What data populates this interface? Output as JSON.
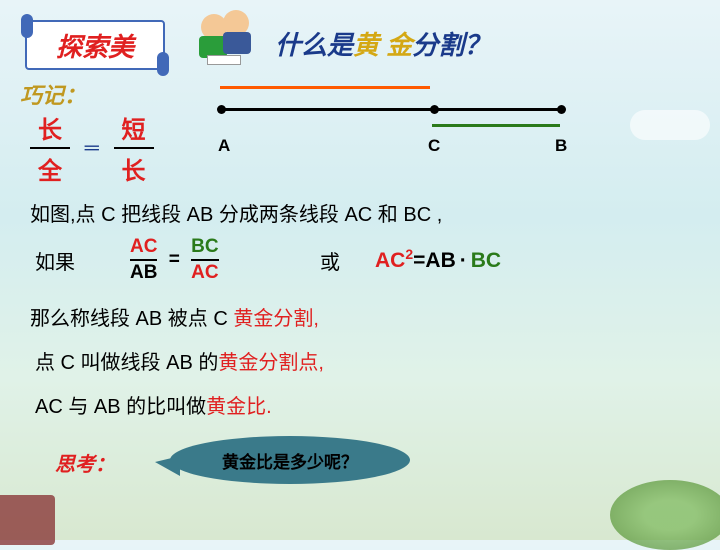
{
  "banner": {
    "text": "探索美"
  },
  "title": {
    "prefix": "什么是",
    "gold": "黄 金",
    "suffix": "分割？"
  },
  "qiaoji": "巧记：",
  "mnemonic": {
    "f1_top": "长",
    "f1_bot": "全",
    "eq": "═",
    "f2_top": "短",
    "f2_bot": "长"
  },
  "diagram": {
    "labelA": "A",
    "labelB": "B",
    "labelC": "C",
    "colors": {
      "orange": "#ff5a00",
      "black": "#000000",
      "green": "#2a7a1a"
    }
  },
  "line1": "如图,点 C 把线段 AB 分成两条线段 AC 和 BC ,",
  "line2_prefix": "如果",
  "equation1": {
    "n1": "AC",
    "d1": "AB",
    "eq": "=",
    "n2": "BC",
    "d2": "AC"
  },
  "huo": "或",
  "equation2": {
    "lhs": "AC",
    "sup": "2",
    "eq": "=",
    "m1": "AB",
    "op": "·",
    "m2": "BC"
  },
  "line3_prefix": "那么称线段 AB 被点 C ",
  "line3_gold": "黄金分割,",
  "line4_prefix": "点 C 叫做线段 AB 的",
  "line4_gold": "黄金分割点,",
  "line5_prefix": "AC 与 AB 的比叫做",
  "line5_gold": "黄金比.",
  "sikao": "思考：",
  "bubble": "黄金比是多少呢？",
  "colors": {
    "red": "#e02020",
    "goldText": "#d4a814",
    "blue": "#1a3a8a",
    "darkgreen": "#2a7a1a"
  },
  "fonts": {
    "title_size": 26,
    "body_size": 20
  }
}
